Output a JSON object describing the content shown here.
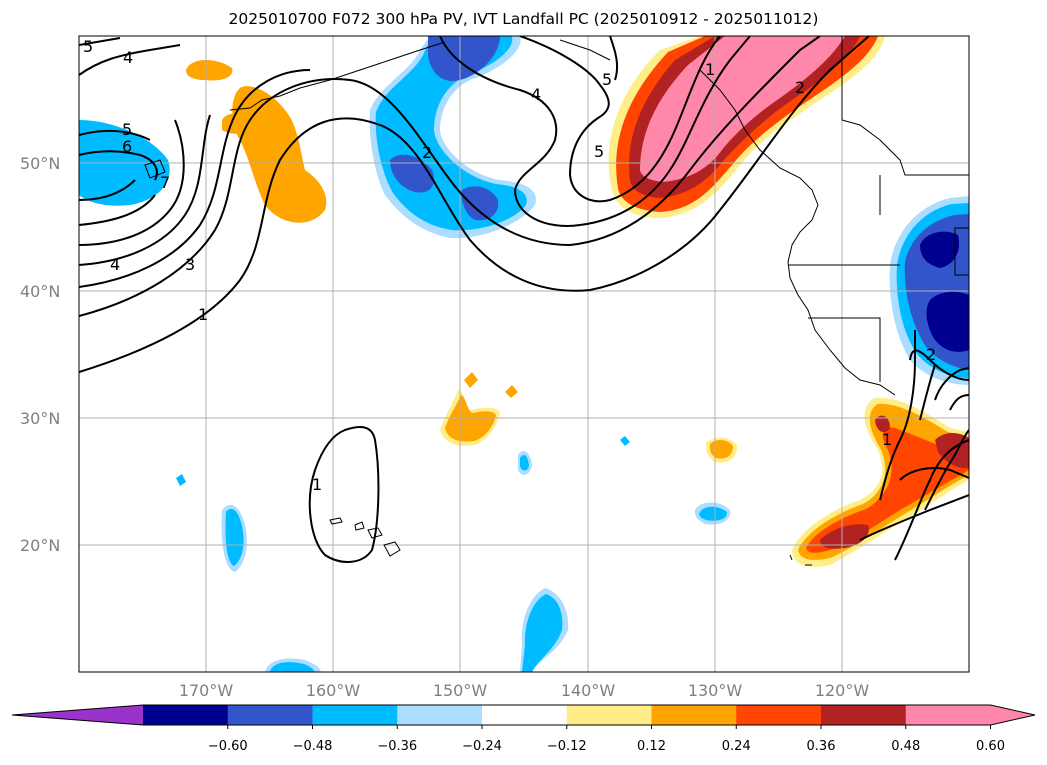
{
  "title": "2025010700 F072 300 hPa PV, IVT Landfall PC (2025010912 - 2025011012)",
  "lat_ticks": [
    "50°N",
    "40°N",
    "30°N",
    "20°N"
  ],
  "lon_ticks": [
    "170°W",
    "160°W",
    "150°W",
    "140°W",
    "130°W",
    "120°W"
  ],
  "colorbar": {
    "ticks": [
      "−0.60",
      "−0.48",
      "−0.36",
      "−0.24",
      "−0.12",
      "0.12",
      "0.24",
      "0.36",
      "0.48",
      "0.60"
    ],
    "colors": [
      "#9933cc",
      "#000090",
      "#3355cc",
      "#00bbff",
      "#aaddff",
      "#ffffff",
      "#ffee88",
      "#ffa500",
      "#ff4500",
      "#b22222",
      "#ff88aa",
      "#ff88aa"
    ]
  },
  "contour_labels": [
    "5",
    "4",
    "5",
    "6",
    "7",
    "4",
    "3",
    "1",
    "2",
    "4",
    "5",
    "5",
    "1",
    "2",
    "1",
    "1",
    "2"
  ]
}
